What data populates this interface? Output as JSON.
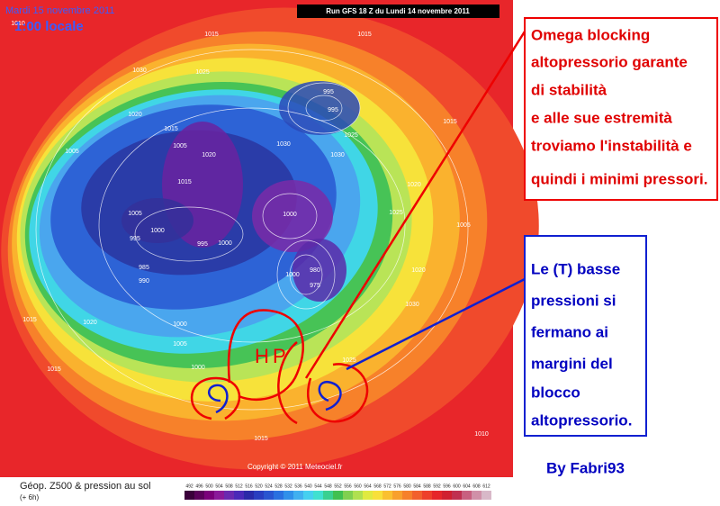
{
  "header": {
    "date": "Mardi 15 novembre 2011",
    "time": "1:00 locale",
    "run": "Run GFS 18 Z du Lundi 14 novembre 2011"
  },
  "map": {
    "isobar_labels": [
      "1010",
      "1015",
      "1015",
      "1030",
      "1025",
      "1020",
      "995",
      "995",
      "1015",
      "1005",
      "1020",
      "1030",
      "1025",
      "1030",
      "1015",
      "1005",
      "1000",
      "995",
      "995",
      "1000",
      "1000",
      "985",
      "990",
      "980",
      "1000",
      "975",
      "1005",
      "1020",
      "1025",
      "1015",
      "1005",
      "1020",
      "1030",
      "1020",
      "1000",
      "1000",
      "1015",
      "1005",
      "1025",
      "1010",
      "1015",
      "1015"
    ],
    "annotation_letters": [
      "H",
      "P"
    ],
    "copyright": "Copyright © 2011 Meteociel.fr"
  },
  "annotations": {
    "red_box": [
      "Omega blocking",
      "altopressorio garante",
      "di stabilità",
      "e alle sue estremità",
      "troviamo l'instabilità e",
      "quindi i minimi pressori."
    ],
    "blue_box": [
      "Le (T) basse",
      "pressioni si",
      "fermano ai",
      "margini del",
      "blocco",
      "altopressorio."
    ],
    "signature": "By Fabri93"
  },
  "footer": {
    "title": "Géop. Z500 & pression au sol",
    "step": "(+ 6h)",
    "scale": [
      492,
      496,
      500,
      504,
      508,
      512,
      516,
      520,
      524,
      528,
      532,
      536,
      540,
      544,
      548,
      552,
      556,
      560,
      564,
      568,
      572,
      576,
      580,
      584,
      588,
      592,
      596,
      600,
      604,
      608,
      612
    ]
  }
}
